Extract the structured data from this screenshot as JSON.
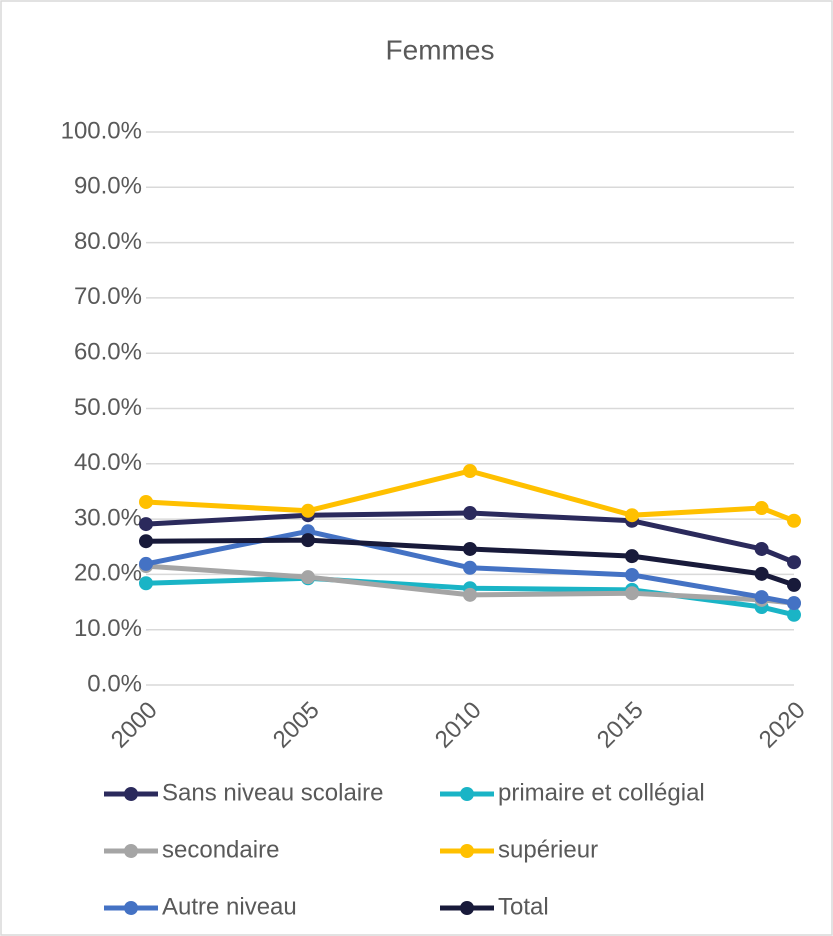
{
  "chart_data": {
    "type": "line",
    "title": "Femmes",
    "x": [
      2000,
      2005,
      2010,
      2015,
      2019,
      2020
    ],
    "xlim": [
      2000,
      2020
    ],
    "xticks": [
      2000,
      2005,
      2010,
      2015,
      2020
    ],
    "ylim": [
      0,
      100
    ],
    "yticks": [
      {
        "value": 0,
        "label": "0.0%"
      },
      {
        "value": 10,
        "label": "10.0%"
      },
      {
        "value": 20,
        "label": "20.0%"
      },
      {
        "value": 30,
        "label": "30.0%"
      },
      {
        "value": 40,
        "label": "40.0%"
      },
      {
        "value": 50,
        "label": "50.0%"
      },
      {
        "value": 60,
        "label": "60.0%"
      },
      {
        "value": 70,
        "label": "70.0%"
      },
      {
        "value": 80,
        "label": "80.0%"
      },
      {
        "value": 90,
        "label": "90.0%"
      },
      {
        "value": 100,
        "label": "100.0%"
      }
    ],
    "grid": true,
    "legend": "bottom",
    "series": [
      {
        "name": "Sans niveau scolaire",
        "color": "#2b2a5c",
        "values": [
          29.1,
          30.7,
          31.1,
          29.7,
          24.6,
          22.2
        ]
      },
      {
        "name": "primaire et collégial",
        "color": "#1ab4c6",
        "values": [
          18.4,
          19.3,
          17.5,
          17.2,
          14.1,
          12.7
        ]
      },
      {
        "name": "secondaire",
        "color": "#a5a5a5",
        "values": [
          21.5,
          19.5,
          16.3,
          16.6,
          15.4,
          14.8
        ]
      },
      {
        "name": "supérieur",
        "color": "#ffc000",
        "values": [
          33.1,
          31.5,
          38.7,
          30.7,
          32.0,
          29.7
        ]
      },
      {
        "name": "Autre niveau",
        "color": "#4472c4",
        "values": [
          21.9,
          27.8,
          21.2,
          19.9,
          15.9,
          14.8
        ]
      },
      {
        "name": "Total",
        "color": "#181a3a",
        "values": [
          26.0,
          26.2,
          24.6,
          23.3,
          20.1,
          18.1
        ]
      }
    ]
  }
}
